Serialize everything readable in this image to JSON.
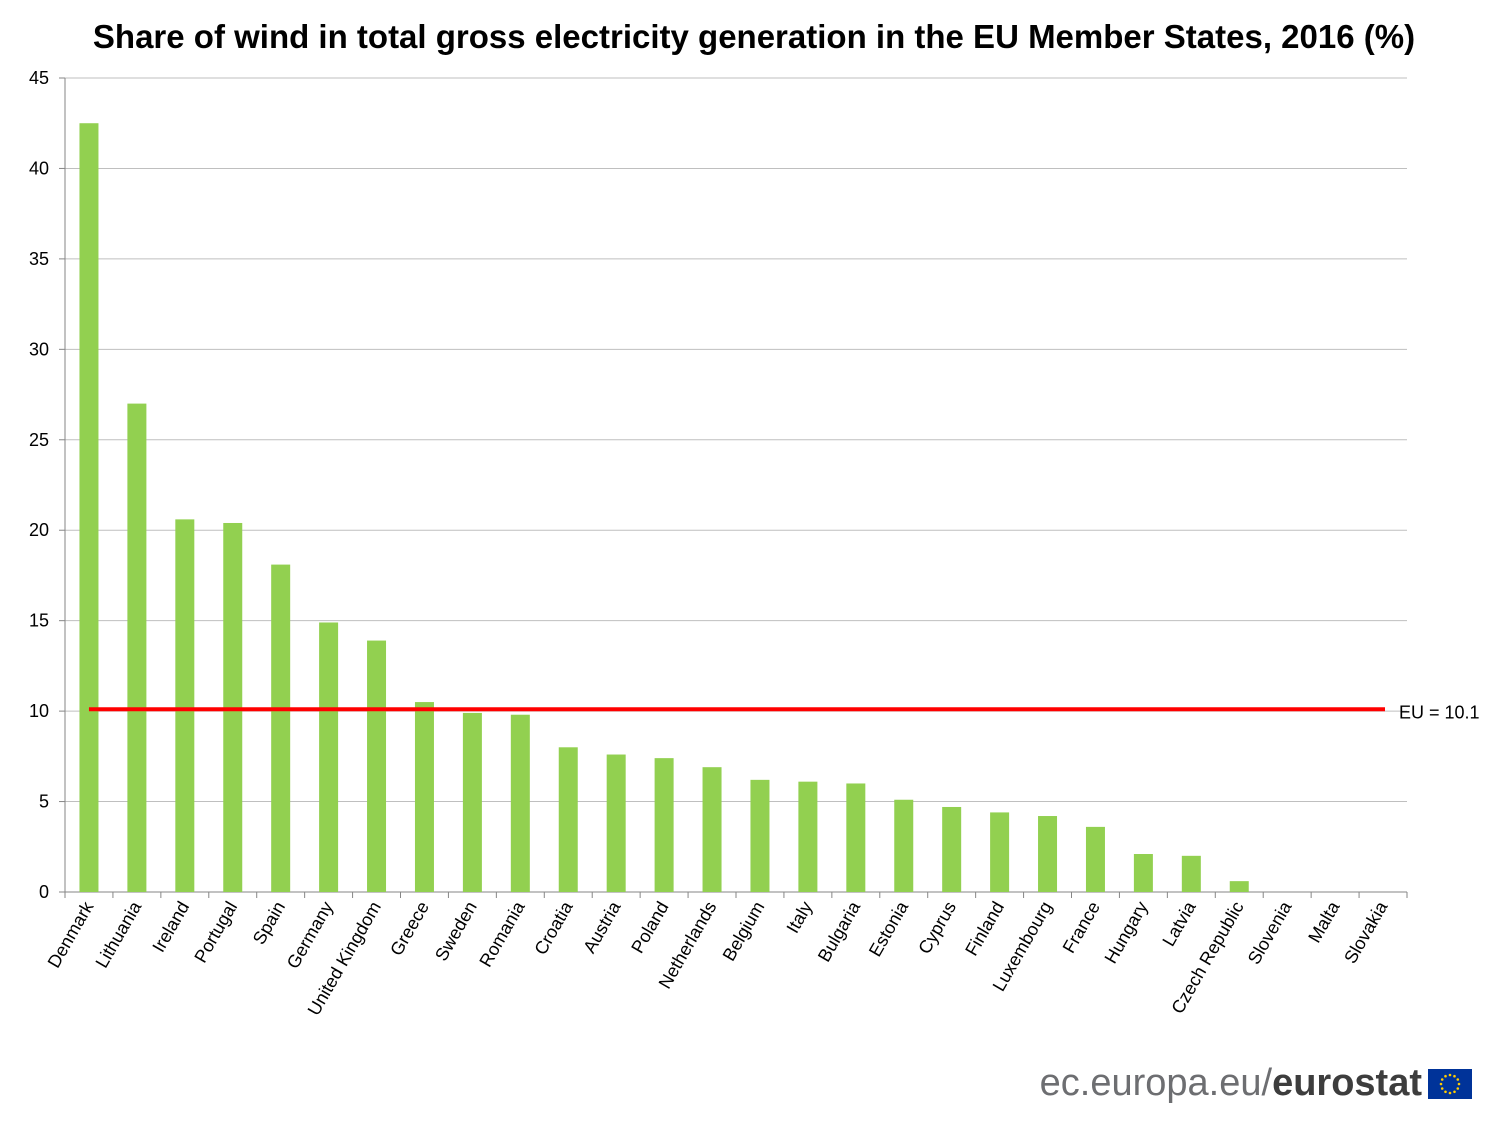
{
  "chart_data": {
    "type": "bar",
    "title": "Share of wind in total gross electricity generation in the EU Member States, 2016 (%)",
    "categories": [
      "Denmark",
      "Lithuania",
      "Ireland",
      "Portugal",
      "Spain",
      "Germany",
      "United Kingdom",
      "Greece",
      "Sweden",
      "Romania",
      "Croatia",
      "Austria",
      "Poland",
      "Netherlands",
      "Belgium",
      "Italy",
      "Bulgaria",
      "Estonia",
      "Cyprus",
      "Finland",
      "Luxembourg",
      "France",
      "Hungary",
      "Latvia",
      "Czech Republic",
      "Slovenia",
      "Malta",
      "Slovakia"
    ],
    "values": [
      42.5,
      27.0,
      20.6,
      20.4,
      18.1,
      14.9,
      13.9,
      10.5,
      9.9,
      9.8,
      8.0,
      7.6,
      7.4,
      6.9,
      6.2,
      6.1,
      6.0,
      5.1,
      4.7,
      4.4,
      4.2,
      3.6,
      2.1,
      2.0,
      0.6,
      0.0,
      0.0,
      0.0
    ],
    "ylim": [
      0,
      45
    ],
    "yticks": [
      0,
      5,
      10,
      15,
      20,
      25,
      30,
      35,
      40,
      45
    ],
    "xlabel": "",
    "ylabel": "",
    "grid": true,
    "reference_line": {
      "value": 10.1,
      "label": "EU = 10.1"
    },
    "colors": {
      "bar": "#92d050",
      "reference_line": "#ff0000",
      "grid": "#bfbfbf",
      "axis": "#868686"
    }
  },
  "footer": {
    "url_text": "ec.europa.eu/",
    "brand": "eurostat",
    "flag_icon": "eu-flag-icon"
  }
}
